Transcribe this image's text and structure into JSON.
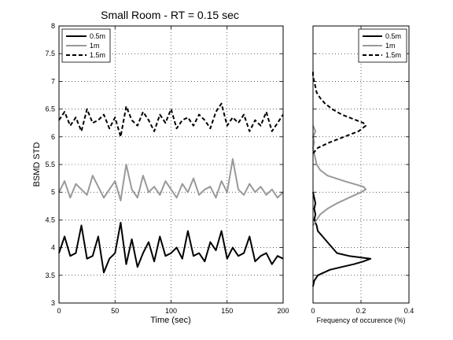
{
  "chart_data": [
    {
      "type": "line",
      "title": "Small Room -  RT = 0.15 sec",
      "xlabel": "Time (sec)",
      "ylabel": "BSMD STD",
      "xlim": [
        0,
        200
      ],
      "ylim": [
        3,
        8
      ],
      "xticks": [
        "0",
        "50",
        "100",
        "150",
        "200"
      ],
      "yticks": [
        "3",
        "3.5",
        "4",
        "4.5",
        "5",
        "5.5",
        "6",
        "6.5",
        "7",
        "7.5",
        "8"
      ],
      "grid": true,
      "legend_position": "top-left",
      "series": [
        {
          "name": "0.5m",
          "color": "#000000",
          "style": "solid",
          "x": [
            0,
            5,
            10,
            15,
            20,
            25,
            30,
            35,
            40,
            45,
            50,
            55,
            60,
            65,
            70,
            75,
            80,
            85,
            90,
            95,
            100,
            105,
            110,
            115,
            120,
            125,
            130,
            135,
            140,
            145,
            150,
            155,
            160,
            165,
            170,
            175,
            180,
            185,
            190,
            195,
            200
          ],
          "y": [
            3.9,
            4.2,
            3.85,
            3.9,
            4.4,
            3.8,
            3.85,
            4.2,
            3.55,
            3.8,
            3.9,
            4.45,
            3.7,
            4.15,
            3.65,
            3.9,
            4.1,
            3.75,
            4.2,
            3.85,
            3.9,
            4.0,
            3.8,
            4.3,
            3.85,
            3.9,
            3.75,
            4.1,
            3.95,
            4.3,
            3.8,
            4.0,
            3.85,
            3.9,
            4.2,
            3.75,
            3.85,
            3.9,
            3.7,
            3.85,
            3.8
          ]
        },
        {
          "name": "1m",
          "color": "#999999",
          "style": "solid",
          "x": [
            0,
            5,
            10,
            15,
            20,
            25,
            30,
            35,
            40,
            45,
            50,
            55,
            60,
            65,
            70,
            75,
            80,
            85,
            90,
            95,
            100,
            105,
            110,
            115,
            120,
            125,
            130,
            135,
            140,
            145,
            150,
            155,
            160,
            165,
            170,
            175,
            180,
            185,
            190,
            195,
            200
          ],
          "y": [
            5.0,
            5.2,
            4.9,
            5.15,
            5.05,
            4.95,
            5.3,
            5.1,
            4.9,
            5.05,
            5.2,
            4.85,
            5.5,
            5.05,
            4.9,
            5.3,
            5.0,
            5.1,
            4.95,
            5.2,
            5.05,
            4.9,
            5.15,
            5.0,
            5.25,
            4.95,
            5.05,
            5.1,
            4.9,
            5.2,
            5.0,
            5.6,
            5.05,
            4.95,
            5.15,
            5.0,
            5.1,
            4.95,
            5.05,
            4.9,
            5.0
          ]
        },
        {
          "name": "1.5m",
          "color": "#000000",
          "style": "dashed",
          "x": [
            0,
            5,
            10,
            15,
            20,
            25,
            30,
            35,
            40,
            45,
            50,
            55,
            60,
            65,
            70,
            75,
            80,
            85,
            90,
            95,
            100,
            105,
            110,
            115,
            120,
            125,
            130,
            135,
            140,
            145,
            150,
            155,
            160,
            165,
            170,
            175,
            180,
            185,
            190,
            195,
            200
          ],
          "y": [
            6.3,
            6.45,
            6.2,
            6.35,
            6.1,
            6.5,
            6.25,
            6.3,
            6.4,
            6.15,
            6.35,
            6.0,
            6.55,
            6.3,
            6.2,
            6.45,
            6.3,
            6.1,
            6.4,
            6.25,
            6.5,
            6.15,
            6.3,
            6.35,
            6.2,
            6.4,
            6.3,
            6.15,
            6.45,
            6.6,
            6.2,
            6.35,
            6.25,
            6.4,
            6.1,
            6.3,
            6.2,
            6.45,
            6.1,
            6.25,
            6.4
          ]
        }
      ]
    },
    {
      "type": "line",
      "xlabel": "Frequency of occurence (%)",
      "xlim": [
        0,
        0.4
      ],
      "ylim": [
        3,
        8
      ],
      "xticks": [
        "0",
        "0.2",
        "0.4"
      ],
      "grid": true,
      "legend_position": "top-right",
      "series": [
        {
          "name": "0.5m",
          "color": "#000000",
          "style": "solid",
          "y": [
            3.3,
            3.4,
            3.5,
            3.6,
            3.65,
            3.7,
            3.75,
            3.8,
            3.85,
            3.9,
            4.0,
            4.1,
            4.2,
            4.3,
            4.4,
            4.5,
            4.6,
            4.7,
            4.8,
            4.9,
            5.0
          ],
          "x": [
            0.0,
            0.005,
            0.02,
            0.07,
            0.12,
            0.17,
            0.21,
            0.24,
            0.15,
            0.1,
            0.08,
            0.06,
            0.04,
            0.02,
            0.015,
            0.005,
            0.01,
            0.005,
            0.01,
            0.005,
            0.0
          ]
        },
        {
          "name": "1m",
          "color": "#999999",
          "style": "solid",
          "y": [
            4.4,
            4.6,
            4.7,
            4.8,
            4.9,
            5.0,
            5.05,
            5.1,
            5.2,
            5.3,
            5.4,
            5.5,
            5.6,
            5.7,
            5.8,
            5.9,
            6.0,
            6.1,
            6.2
          ],
          "x": [
            0.0,
            0.03,
            0.06,
            0.1,
            0.15,
            0.2,
            0.22,
            0.21,
            0.13,
            0.06,
            0.03,
            0.015,
            0.01,
            0.005,
            0.0,
            0.005,
            0.0,
            0.01,
            0.0
          ]
        },
        {
          "name": "1.5m",
          "color": "#000000",
          "style": "dashed",
          "y": [
            5.7,
            5.8,
            5.9,
            6.0,
            6.1,
            6.2,
            6.25,
            6.3,
            6.4,
            6.5,
            6.6,
            6.7,
            6.8,
            6.9,
            7.0,
            7.1,
            7.2
          ],
          "x": [
            0.0,
            0.02,
            0.07,
            0.13,
            0.19,
            0.22,
            0.21,
            0.18,
            0.12,
            0.08,
            0.05,
            0.03,
            0.015,
            0.01,
            0.005,
            0.0,
            0.0
          ]
        }
      ]
    }
  ]
}
